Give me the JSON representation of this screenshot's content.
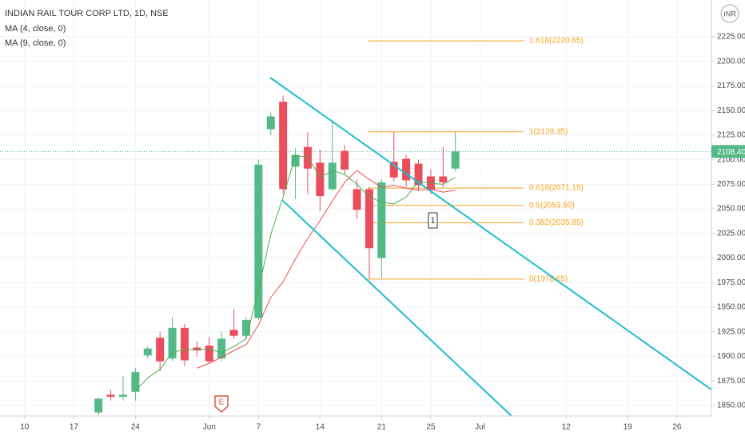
{
  "chart_data": {
    "type": "candlestick",
    "title": "INDIAN RAIL TOUR CORP LTD, 1D, NSE",
    "currency": "INR",
    "x": [
      0,
      1,
      2,
      3,
      4,
      5,
      6,
      7,
      8,
      9,
      10,
      11,
      12,
      13,
      14,
      15,
      16,
      17,
      18,
      19,
      20,
      21,
      22,
      23,
      24,
      25,
      26,
      27,
      28,
      29
    ],
    "open": [
      1843,
      1861,
      1859,
      1864,
      1901,
      1919,
      1898,
      1929,
      1909,
      1911,
      1898,
      1927,
      1921,
      1939,
      2131,
      2159,
      2093,
      2113,
      2097,
      2070,
      2109,
      2070,
      2070,
      2000,
      2098,
      2101,
      2096,
      2083,
      2083,
      2091
    ],
    "high": [
      1858,
      1866,
      1880,
      1888,
      1910,
      1925,
      1940,
      1933,
      1915,
      1920,
      1925,
      1948,
      1940,
      2100,
      2148,
      2165,
      2112,
      2128,
      2110,
      2138,
      2115,
      2080,
      2072,
      2080,
      2128,
      2105,
      2100,
      2090,
      2113,
      2128
    ],
    "low": [
      1840,
      1855,
      1855,
      1855,
      1898,
      1885,
      1895,
      1890,
      1900,
      1893,
      1895,
      1918,
      1918,
      1937,
      2125,
      2065,
      2060,
      2065,
      2048,
      2068,
      2085,
      2040,
      1979,
      1980,
      2078,
      2072,
      2068,
      2065,
      2072,
      2088
    ],
    "close": [
      1857,
      1859,
      1861,
      1884,
      1908,
      1895,
      1929,
      1896,
      1906,
      1895,
      1918,
      1921,
      1937,
      2095,
      2144,
      2070,
      2105,
      2091,
      2063,
      2097,
      2090,
      2049,
      2010,
      2077,
      2082,
      2079,
      2074,
      2069,
      2077,
      2108.4
    ],
    "up_color": "#53b987",
    "down_color": "#eb4d5c",
    "series": [
      {
        "name": "MA (4, close, 0)",
        "color": "#4caf50",
        "values": [
          null,
          null,
          null,
          1865,
          1878,
          1887,
          1904,
          1907,
          1907,
          1907,
          1904,
          1910,
          1918,
          1968,
          2024,
          2062,
          2104,
          2103,
          2082,
          2089,
          2085,
          2075,
          2062,
          2057,
          2055,
          2062,
          2078,
          2076,
          2075,
          2082
        ]
      },
      {
        "name": "MA (9, close, 0)",
        "color": "#f04b4b",
        "values": [
          null,
          null,
          null,
          null,
          null,
          null,
          null,
          null,
          1888,
          1893,
          1899,
          1906,
          1912,
          1932,
          1960,
          1976,
          1999,
          2020,
          2038,
          2058,
          2077,
          2089,
          2080,
          2072,
          2074,
          2071,
          2069,
          2070,
          2067,
          2069
        ]
      }
    ],
    "fib_color": "#f7a21b",
    "fib_levels": [
      {
        "value": 2220.85,
        "label": "1.618(2220.85)"
      },
      {
        "value": 2128.35,
        "label": "1(2128.35)"
      },
      {
        "value": 2071.15,
        "label": "0.618(2071.15)"
      },
      {
        "value": 2053.5,
        "label": "0.5(2053.50)"
      },
      {
        "value": 2035.85,
        "label": "0.382(2035.85)"
      },
      {
        "value": 1978.65,
        "label": "0(1978.65)"
      }
    ],
    "last_price": {
      "value": 2108.4,
      "label": "2108.40"
    },
    "annotations": [
      "1",
      "E"
    ],
    "xlim": [
      -8,
      49.8
    ],
    "ylim": [
      1839.4,
      2262.4
    ],
    "xticks": [
      {
        "value": -6,
        "label": "10"
      },
      {
        "value": -2,
        "label": "17"
      },
      {
        "value": 3,
        "label": "24"
      },
      {
        "value": 9,
        "label": "Jun"
      },
      {
        "value": 13,
        "label": "7"
      },
      {
        "value": 18,
        "label": "14"
      },
      {
        "value": 23,
        "label": "21"
      },
      {
        "value": 27,
        "label": "25"
      },
      {
        "value": 31,
        "label": "Jul"
      },
      {
        "value": 38,
        "label": "12"
      },
      {
        "value": 43,
        "label": "19"
      },
      {
        "value": 47,
        "label": "26"
      }
    ],
    "yticks": [
      {
        "value": 1850,
        "label": "1850.00"
      },
      {
        "value": 1875,
        "label": "1875.00"
      },
      {
        "value": 1900,
        "label": "1900.00"
      },
      {
        "value": 1925,
        "label": "1925.00"
      },
      {
        "value": 1950,
        "label": "1950.00"
      },
      {
        "value": 1975,
        "label": "1975.00"
      },
      {
        "value": 2000,
        "label": "2000.00"
      },
      {
        "value": 2025,
        "label": "2025.00"
      },
      {
        "value": 2050,
        "label": "2050.00"
      },
      {
        "value": 2075,
        "label": "2075.00"
      },
      {
        "value": 2100,
        "label": "2100.00"
      },
      {
        "value": 2125,
        "label": "2125.00"
      },
      {
        "value": 2150,
        "label": "2150.00"
      },
      {
        "value": 2175,
        "label": "2175.00"
      },
      {
        "value": 2200,
        "label": "2200.00"
      },
      {
        "value": 2225,
        "label": "2225.00"
      }
    ],
    "grid": true
  }
}
